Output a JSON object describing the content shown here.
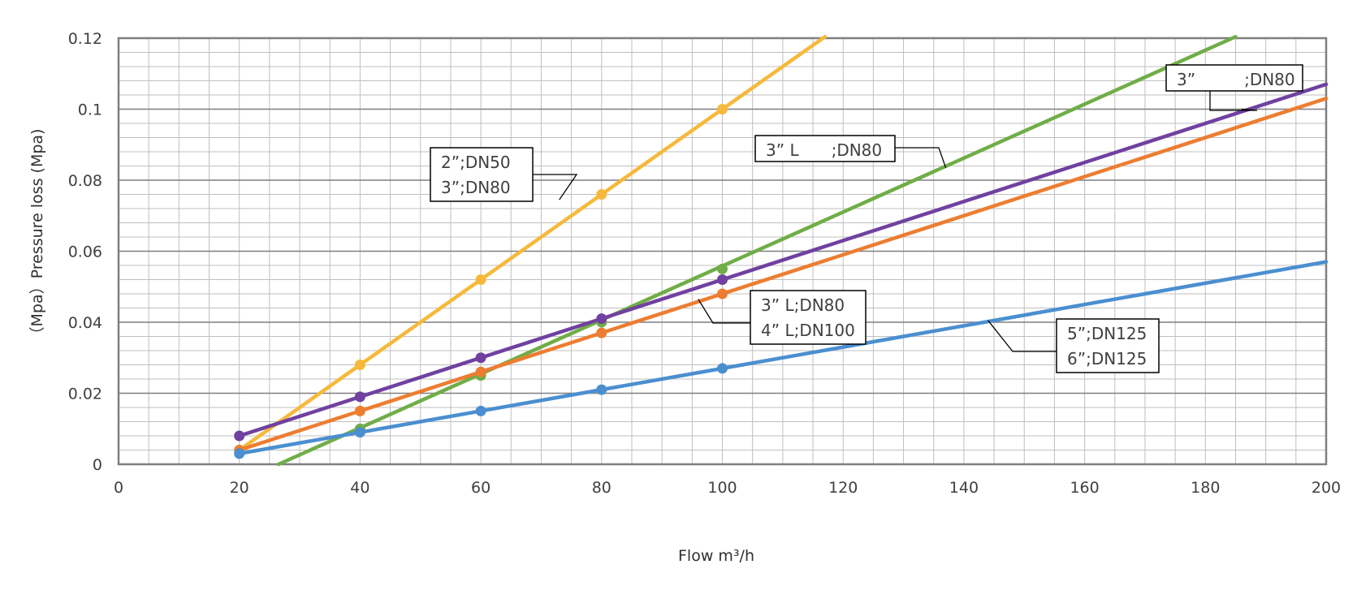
{
  "chart_data": {
    "type": "line",
    "xlabel": "Flow m³/h",
    "ylabel": "（Mpa）Pressure loss (Mpa)",
    "xlim": [
      0,
      200
    ],
    "ylim": [
      0,
      0.12
    ],
    "xticks": [
      "0",
      "20",
      "40",
      "60",
      "80",
      "100",
      "120",
      "140",
      "160",
      "180",
      "200"
    ],
    "yticks": [
      "0",
      "0.02",
      "0.04",
      "0.06",
      "0.08",
      "0.1",
      "0.12"
    ],
    "grid": true,
    "series": [
      {
        "color": "#F6B93B",
        "points": [
          [
            20,
            0.004
          ],
          [
            40,
            0.028
          ],
          [
            60,
            0.052
          ],
          [
            80,
            0.076
          ],
          [
            100,
            0.1
          ]
        ],
        "line": [
          [
            20,
            0.004
          ],
          [
            117,
            0.1204
          ]
        ]
      },
      {
        "color": "#70AD47",
        "points": [
          [
            40,
            0.01
          ],
          [
            60,
            0.025
          ],
          [
            80,
            0.04
          ],
          [
            100,
            0.055
          ]
        ],
        "line": [
          [
            26.5,
            0.0
          ],
          [
            185,
            0.1204
          ]
        ]
      },
      {
        "color": "#7041A0",
        "points": [
          [
            20,
            0.008
          ],
          [
            40,
            0.019
          ],
          [
            60,
            0.03
          ],
          [
            80,
            0.041
          ],
          [
            100,
            0.052
          ]
        ],
        "line": [
          [
            20,
            0.008
          ],
          [
            200,
            0.107
          ]
        ]
      },
      {
        "color": "#ED7D31",
        "points": [
          [
            20,
            0.004
          ],
          [
            40,
            0.015
          ],
          [
            60,
            0.026
          ],
          [
            80,
            0.037
          ],
          [
            100,
            0.048
          ]
        ],
        "line": [
          [
            20,
            0.004
          ],
          [
            200,
            0.103
          ]
        ]
      },
      {
        "color": "#4A8FD0",
        "points": [
          [
            20,
            0.003
          ],
          [
            40,
            0.009
          ],
          [
            60,
            0.015
          ],
          [
            80,
            0.021
          ],
          [
            100,
            0.027
          ]
        ],
        "line": [
          [
            20,
            0.003
          ],
          [
            200,
            0.057
          ]
        ]
      }
    ],
    "annotations": [
      {
        "lines": [
          "2”;DN50",
          "3”;DN80"
        ],
        "target": [
          73,
          0.0745
        ]
      },
      {
        "lines": [
          "3” L　　;DN80"
        ],
        "target": [
          137,
          0.0835
        ]
      },
      {
        "lines": [
          "3”　　　;DN80"
        ],
        "target": [
          186,
          0.1
        ]
      },
      {
        "lines": [
          "3” L;DN80",
          "4” L;DN100"
        ],
        "target": [
          96,
          0.0465
        ]
      },
      {
        "lines": [
          "5”;DN125",
          "6”;DN125"
        ],
        "target": [
          144,
          0.0405
        ]
      }
    ]
  }
}
